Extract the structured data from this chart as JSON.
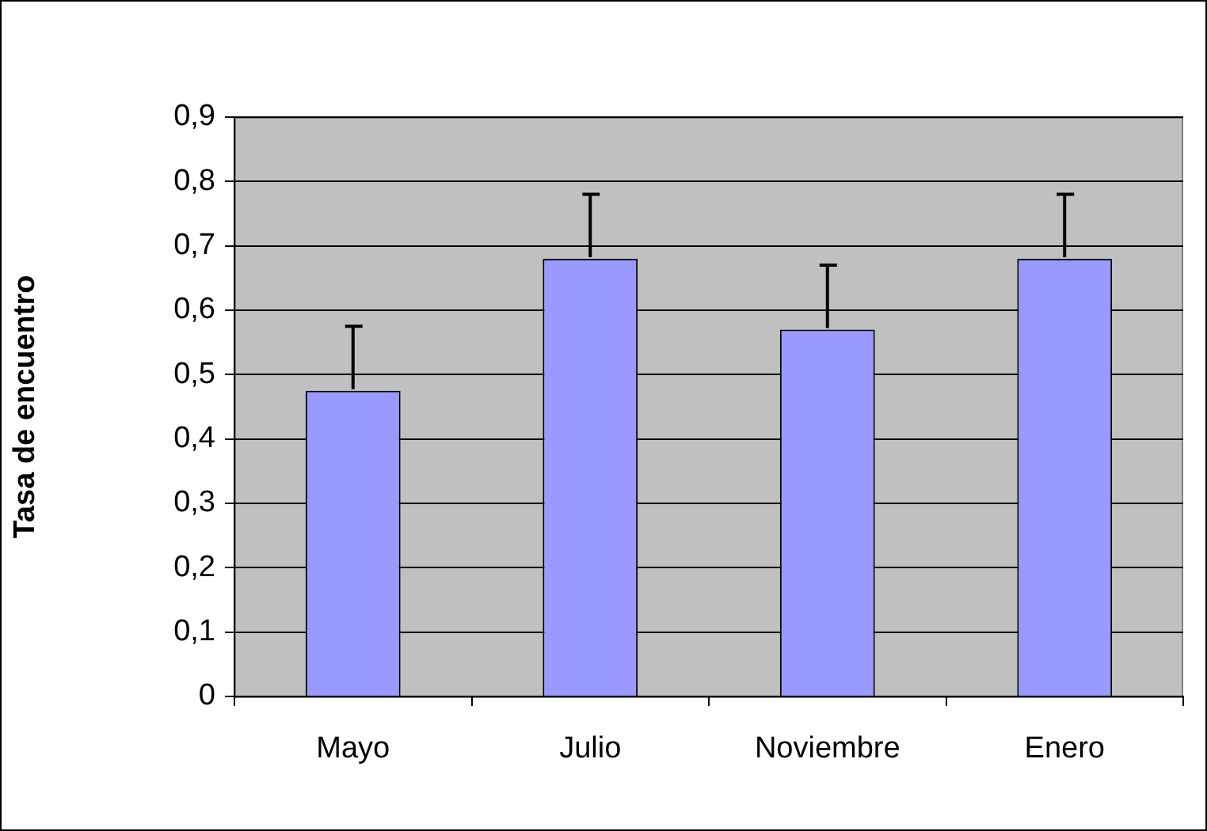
{
  "chart_data": {
    "type": "bar",
    "ylabel": "Tasa de encuentro",
    "categories": [
      "Mayo",
      "Julio",
      "Noviembre",
      "Enero"
    ],
    "values": [
      0.475,
      0.68,
      0.57,
      0.68
    ],
    "errors": [
      [
        0.475,
        0.575
      ],
      [
        0.68,
        0.78
      ],
      [
        0.57,
        0.67
      ],
      [
        0.68,
        0.78
      ]
    ],
    "color": "#9999ff",
    "ylim": [
      0,
      0.9
    ],
    "yticks": [
      0,
      {
        "value": 0.1,
        "label": "0,1"
      },
      {
        "value": 0.2,
        "label": "0,2"
      },
      {
        "value": 0.3,
        "label": "0,3"
      },
      {
        "value": 0.4,
        "label": "0,4"
      },
      {
        "value": 0.5,
        "label": "0,5"
      },
      {
        "value": 0.6,
        "label": "0,6"
      },
      {
        "value": 0.7,
        "label": "0,7"
      },
      {
        "value": 0.8,
        "label": "0,8"
      },
      {
        "value": 0.9,
        "label": "0,9"
      }
    ],
    "grid": "y",
    "legend": false
  }
}
